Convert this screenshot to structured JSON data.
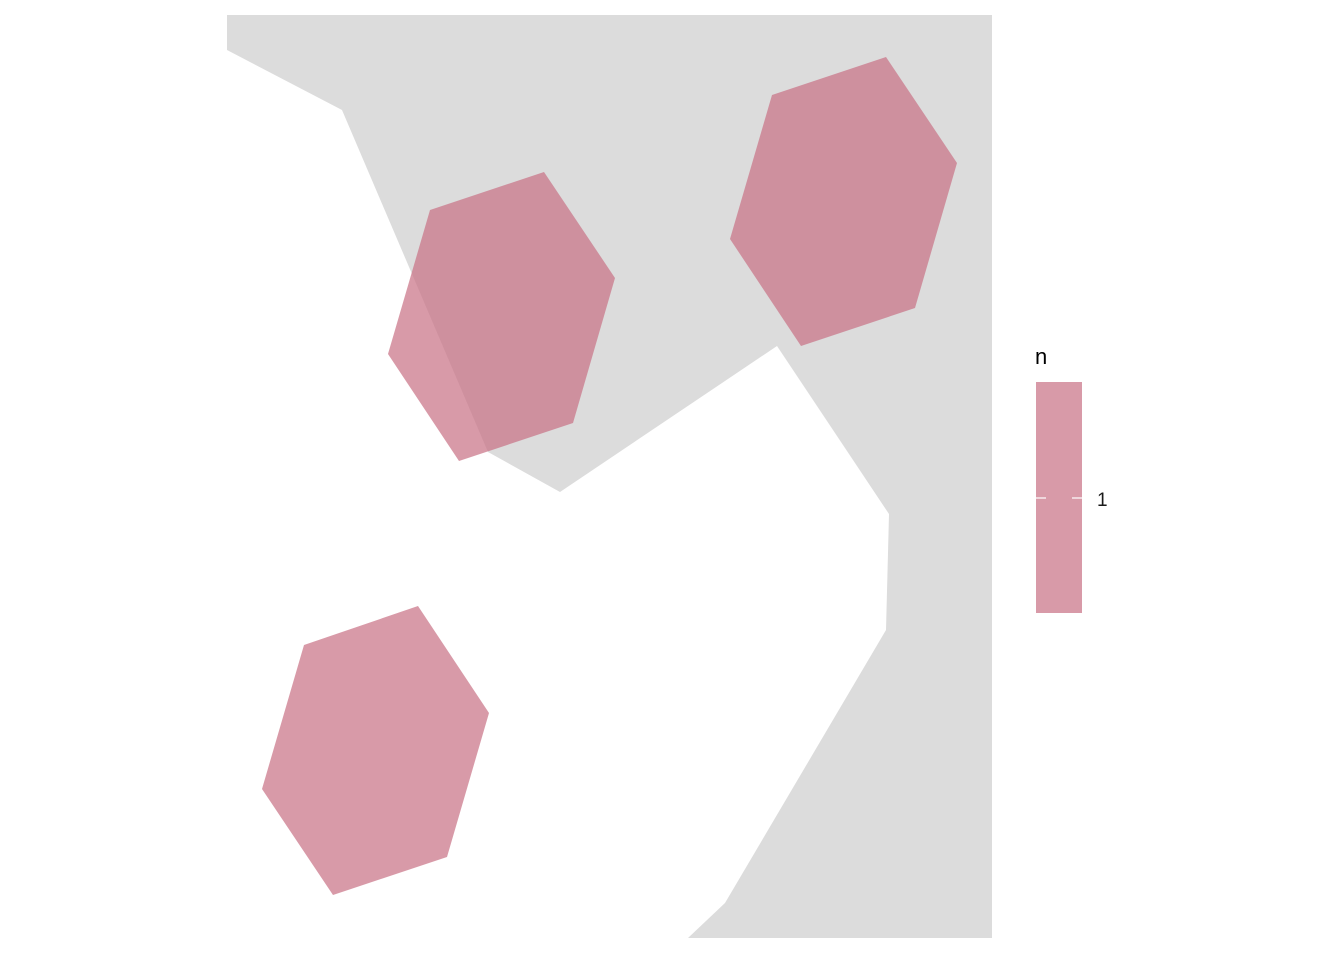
{
  "colors": {
    "background": "#ffffff",
    "land": "#dcdcdc",
    "hex_fill": "#c97386",
    "hex_opacity": 0.72,
    "tick": "#ffffff",
    "legend_text": "#1a1a1a"
  },
  "legend": {
    "title": "n",
    "label": "1",
    "scale_value": 1
  },
  "hexbins": [
    {
      "count": 1
    },
    {
      "count": 1
    },
    {
      "count": 1
    }
  ]
}
